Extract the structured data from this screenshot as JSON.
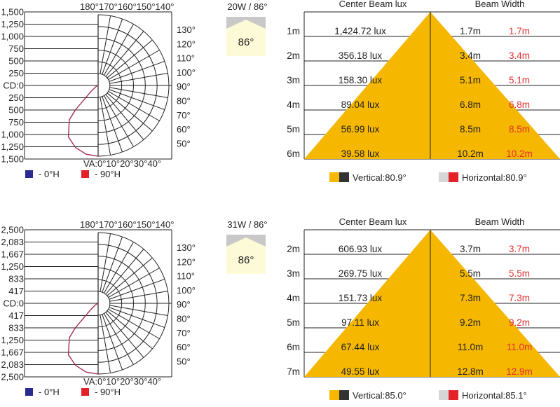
{
  "colors": {
    "grid": "#222222",
    "curve_0h": "#2b2a8f",
    "curve_90h": "#c41e3a",
    "cone": "#f5b700",
    "swatch_blue": "#2b2a8f",
    "swatch_red": "#e3222a",
    "swatch_dark": "#333333",
    "swatch_grey": "#d6d6d6",
    "width_red": "#e03030",
    "beam_box_bg": "#fdfad8",
    "beam_box_shade": "#c8c8c8"
  },
  "chart_data": [
    {
      "type": "polar",
      "top_angle_labels": [
        "180°",
        "170°",
        "160°",
        "150°",
        "140°"
      ],
      "right_angle_labels": [
        "130°",
        "120°",
        "110°",
        "100°",
        "90°",
        "80°",
        "70°",
        "60°",
        "50°"
      ],
      "bottom_angle_labels": [
        "VA:0°",
        "10°",
        "20°",
        "30°",
        "40°"
      ],
      "intensity_labels": [
        "1,500",
        "1,250",
        "1,000",
        "750",
        "500",
        "250",
        "CD:0",
        "250",
        "500",
        "750",
        "1,000",
        "1,250",
        "1,500"
      ],
      "intensity_max": 1500,
      "legend": [
        {
          "label": "- 0°H",
          "color": "#2b2a8f"
        },
        {
          "label": "- 90°H",
          "color": "#e3222a"
        }
      ],
      "series": [
        {
          "name": "0°H",
          "angles": [
            0,
            10,
            20,
            30,
            40,
            43,
            50,
            60,
            70,
            80,
            90
          ],
          "values": [
            1500,
            1480,
            1400,
            1260,
            950,
            700,
            200,
            60,
            25,
            10,
            0
          ]
        },
        {
          "name": "90°H",
          "angles": [
            0,
            10,
            20,
            30,
            40,
            43,
            50,
            60,
            70,
            80,
            90
          ],
          "values": [
            1500,
            1480,
            1400,
            1260,
            950,
            700,
            200,
            60,
            25,
            10,
            0
          ]
        }
      ]
    },
    {
      "type": "table",
      "power_label": "20W / 86°",
      "beam_angle_label": "86°",
      "headers": {
        "lux": "Center Beam lux",
        "width": "Beam Width"
      },
      "rows": [
        {
          "distance": "1m",
          "lux": "1,424.72 lux",
          "vertical": "1.7m",
          "horizontal": "1.7m"
        },
        {
          "distance": "2m",
          "lux": "356.18 lux",
          "vertical": "3.4m",
          "horizontal": "3.4m"
        },
        {
          "distance": "3m",
          "lux": "158.30 lux",
          "vertical": "5.1m",
          "horizontal": "5.1m"
        },
        {
          "distance": "4m",
          "lux": "89.04 lux",
          "vertical": "6.8m",
          "horizontal": "6.8m"
        },
        {
          "distance": "5m",
          "lux": "56.99 lux",
          "vertical": "8.5m",
          "horizontal": "8.5m"
        },
        {
          "distance": "6m",
          "lux": "39.58 lux",
          "vertical": "10.2m",
          "horizontal": "10.2m"
        }
      ],
      "vertical_label": "Vertical:80.9°",
      "horizontal_label": "Horizontal:80.9°"
    },
    {
      "type": "polar",
      "top_angle_labels": [
        "180°",
        "170°",
        "160°",
        "150°",
        "140°"
      ],
      "right_angle_labels": [
        "130°",
        "120°",
        "110°",
        "100°",
        "90°",
        "80°",
        "70°",
        "60°",
        "50°"
      ],
      "bottom_angle_labels": [
        "VA:0°",
        "10°",
        "20°",
        "30°",
        "40°"
      ],
      "intensity_labels": [
        "2,500",
        "2,083",
        "1,667",
        "1,250",
        "833",
        "417",
        "CD:0",
        "417",
        "833",
        "1,250",
        "1,667",
        "2,083",
        "2,500"
      ],
      "intensity_max": 2500,
      "legend": [
        {
          "label": "- 0°H",
          "color": "#2b2a8f"
        },
        {
          "label": "- 90°H",
          "color": "#e3222a"
        }
      ],
      "series": [
        {
          "name": "0°H",
          "angles": [
            0,
            10,
            20,
            30,
            40,
            43,
            50,
            60,
            70,
            80,
            90
          ],
          "values": [
            2500,
            2465,
            2330,
            2100,
            1580,
            1170,
            330,
            100,
            40,
            15,
            0
          ]
        },
        {
          "name": "90°H",
          "angles": [
            0,
            10,
            20,
            30,
            40,
            43,
            50,
            60,
            70,
            80,
            90
          ],
          "values": [
            2500,
            2465,
            2330,
            2100,
            1580,
            1170,
            330,
            100,
            40,
            15,
            0
          ]
        }
      ]
    },
    {
      "type": "table",
      "power_label": "31W / 86°",
      "beam_angle_label": "86°",
      "headers": {
        "lux": "Center Beam lux",
        "width": "Beam Width"
      },
      "rows": [
        {
          "distance": "2m",
          "lux": "606.93 lux",
          "vertical": "3.7m",
          "horizontal": "3.7m"
        },
        {
          "distance": "3m",
          "lux": "269.75 lux",
          "vertical": "5.5m",
          "horizontal": "5.5m"
        },
        {
          "distance": "4m",
          "lux": "151.73 lux",
          "vertical": "7.3m",
          "horizontal": "7.3m"
        },
        {
          "distance": "5m",
          "lux": "97.11 lux",
          "vertical": "9.2m",
          "horizontal": "9.2m"
        },
        {
          "distance": "6m",
          "lux": "67.44 lux",
          "vertical": "11.0m",
          "horizontal": "11.0m"
        },
        {
          "distance": "7m",
          "lux": "49.55 lux",
          "vertical": "12.8m",
          "horizontal": "12.9m"
        }
      ],
      "vertical_label": "Vertical:85.0°",
      "horizontal_label": "Horizontal:85.1°"
    }
  ]
}
